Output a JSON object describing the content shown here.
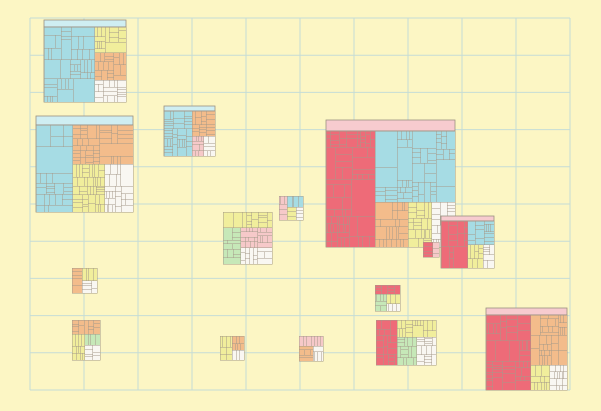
{
  "colors": {
    "background": "#fcf6c4",
    "grid": "#c5dcd6",
    "cell_stroke": "#a59a8a",
    "frame_stroke": "#9a9080",
    "cyan": "#a6dce4",
    "orange": "#f3bc8b",
    "yellow": "#f1ee9c",
    "pink": "#f6c9c9",
    "red": "#ee6b78",
    "green": "#c6e8b8",
    "white": "#f9f7f2",
    "header_cyan": "#cfeef2",
    "header_pink": "#f7cbcf"
  },
  "grid_lines": {
    "columns": 10,
    "rows": 10
  },
  "treemaps": [
    {
      "name": "treemap-top-left",
      "header": "header_cyan",
      "regions": [
        [
          "cyan",
          0.62
        ],
        [
          "yellow",
          0.13
        ],
        [
          "orange",
          0.14
        ],
        [
          "white",
          0.11
        ]
      ]
    },
    {
      "name": "treemap-mid-left",
      "header": "header_cyan",
      "regions": [
        [
          "cyan",
          0.38
        ],
        [
          "orange",
          0.28
        ],
        [
          "yellow",
          0.18
        ],
        [
          "white",
          0.16
        ]
      ]
    },
    {
      "name": "treemap-small-top",
      "header": "header_cyan",
      "regions": [
        [
          "cyan",
          0.55
        ],
        [
          "orange",
          0.25
        ],
        [
          "pink",
          0.1
        ],
        [
          "white",
          0.1
        ]
      ]
    },
    {
      "name": "treemap-large-center",
      "header": "header_pink",
      "regions": [
        [
          "red",
          0.38
        ],
        [
          "cyan",
          0.38
        ],
        [
          "orange",
          0.1
        ],
        [
          "yellow",
          0.07
        ],
        [
          "white",
          0.07
        ]
      ]
    },
    {
      "name": "treemap-center-right",
      "header": "header_pink",
      "regions": [
        [
          "red",
          0.5
        ],
        [
          "cyan",
          0.25
        ],
        [
          "yellow",
          0.15
        ],
        [
          "white",
          0.1
        ]
      ]
    },
    {
      "name": "treemap-bottom-right",
      "header": "header_pink",
      "regions": [
        [
          "red",
          0.55
        ],
        [
          "orange",
          0.3
        ],
        [
          "yellow",
          0.08
        ],
        [
          "white",
          0.07
        ]
      ]
    }
  ],
  "clusters": [
    {
      "name": "cluster-center-left",
      "regions": [
        [
          "yellow",
          0.3
        ],
        [
          "green",
          0.25
        ],
        [
          "pink",
          0.25
        ],
        [
          "white",
          0.2
        ]
      ]
    },
    {
      "name": "cluster-center",
      "regions": [
        [
          "pink",
          0.35
        ],
        [
          "cyan",
          0.3
        ],
        [
          "yellow",
          0.2
        ],
        [
          "white",
          0.15
        ]
      ]
    },
    {
      "name": "cluster-left-lower",
      "regions": [
        [
          "orange",
          0.4
        ],
        [
          "yellow",
          0.3
        ],
        [
          "white",
          0.3
        ]
      ]
    },
    {
      "name": "cluster-bottom-left",
      "regions": [
        [
          "orange",
          0.35
        ],
        [
          "yellow",
          0.3
        ],
        [
          "green",
          0.15
        ],
        [
          "white",
          0.2
        ]
      ]
    },
    {
      "name": "cluster-bottom-mid-left",
      "regions": [
        [
          "yellow",
          0.5
        ],
        [
          "orange",
          0.3
        ],
        [
          "white",
          0.2
        ]
      ]
    },
    {
      "name": "cluster-bottom-mid",
      "regions": [
        [
          "pink",
          0.4
        ],
        [
          "orange",
          0.35
        ],
        [
          "white",
          0.25
        ]
      ]
    },
    {
      "name": "cluster-right-mid",
      "regions": [
        [
          "red",
          0.35
        ],
        [
          "green",
          0.3
        ],
        [
          "yellow",
          0.2
        ],
        [
          "white",
          0.15
        ]
      ]
    },
    {
      "name": "cluster-bottom-right-mid",
      "regions": [
        [
          "red",
          0.35
        ],
        [
          "yellow",
          0.25
        ],
        [
          "green",
          0.2
        ],
        [
          "white",
          0.2
        ]
      ]
    },
    {
      "name": "cluster-center-right-small",
      "regions": [
        [
          "red",
          0.6
        ],
        [
          "pink",
          0.4
        ]
      ]
    }
  ]
}
